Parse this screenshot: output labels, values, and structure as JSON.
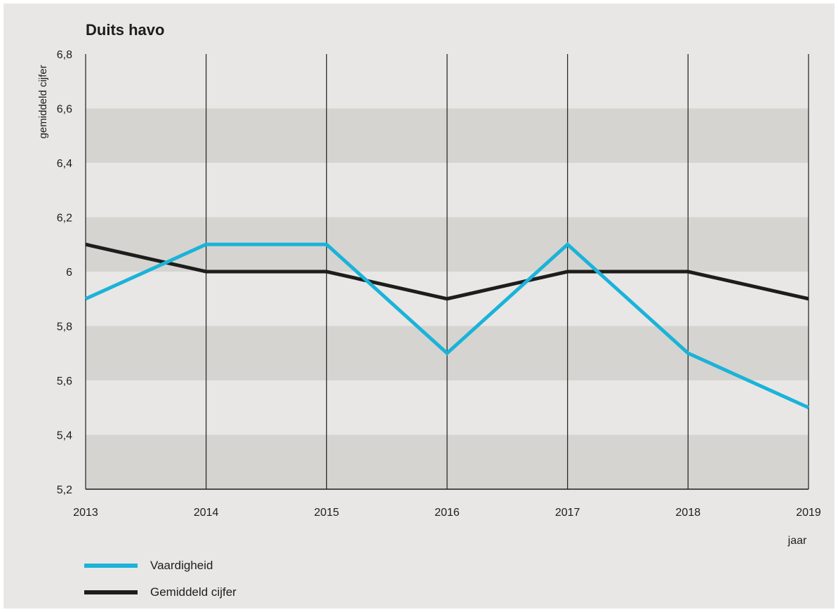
{
  "chart_data": {
    "type": "line",
    "title": "Duits havo",
    "xlabel": "jaar",
    "ylabel": "gemiddeld cijfer",
    "x": [
      "2013",
      "2014",
      "2015",
      "2016",
      "2017",
      "2018",
      "2019"
    ],
    "ylim": [
      5.2,
      6.8
    ],
    "yticks": [
      5.2,
      5.4,
      5.6,
      5.8,
      6.0,
      6.2,
      6.4,
      6.6,
      6.8
    ],
    "ytick_labels": [
      "5,2",
      "5,4",
      "5,6",
      "5,8",
      "6",
      "6,2",
      "6,4",
      "6,6",
      "6,8"
    ],
    "grid": "vertical lines at each year; alternating horizontal bands",
    "legend_position": "bottom-left",
    "series": [
      {
        "name": "Vaardigheid",
        "color": "#1ab3d9",
        "values": [
          5.9,
          6.1,
          6.1,
          5.7,
          6.1,
          5.7,
          5.5
        ]
      },
      {
        "name": "Gemiddeld cijfer",
        "color": "#1d1d1b",
        "values": [
          6.1,
          6.0,
          6.0,
          5.9,
          6.0,
          6.0,
          5.9
        ]
      }
    ]
  }
}
